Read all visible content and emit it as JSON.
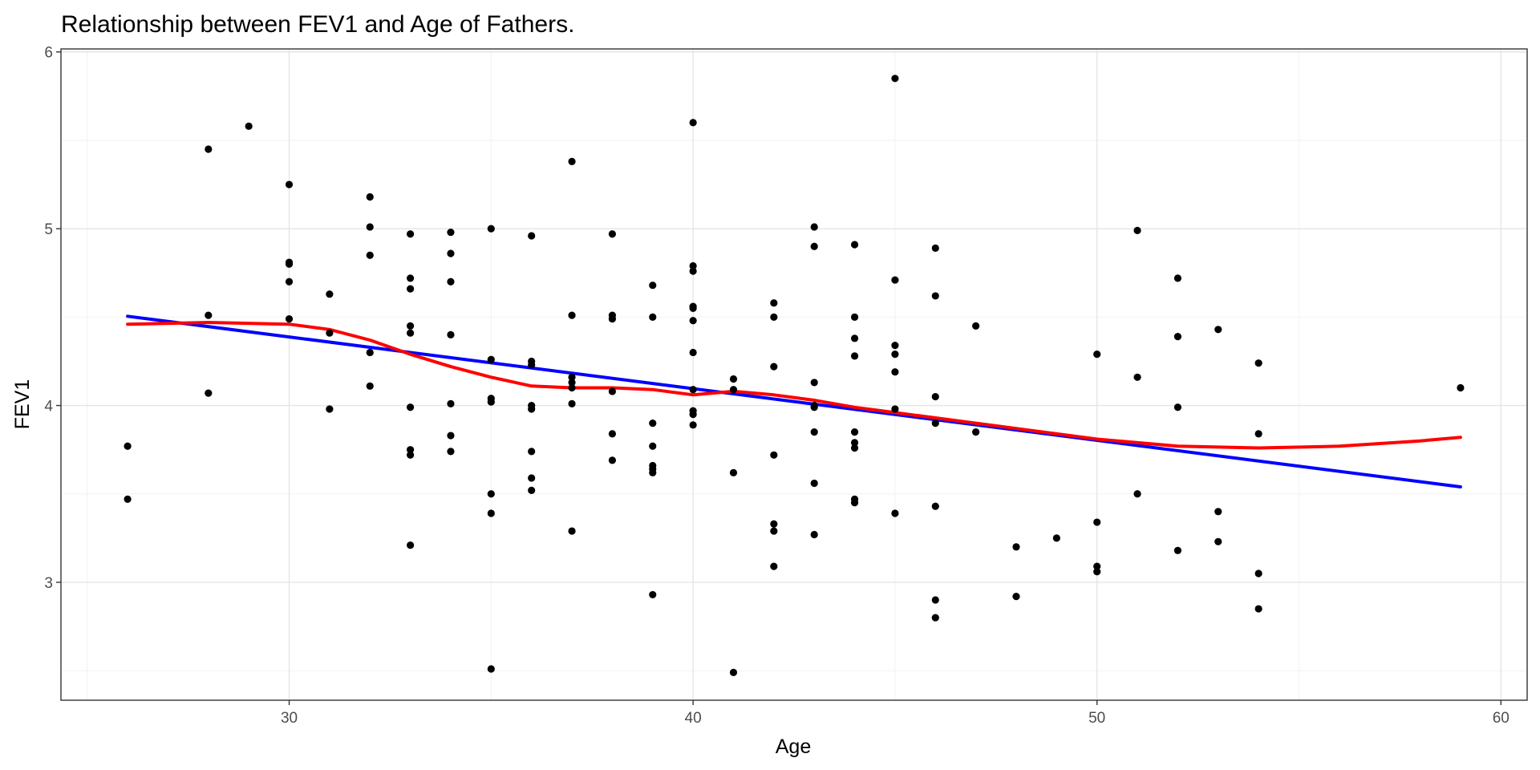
{
  "chart_data": {
    "type": "scatter",
    "title": "Relationship between FEV1 and Age of Fathers.",
    "xlabel": "Age",
    "ylabel": "FEV1",
    "xlim": [
      24.35,
      60.65
    ],
    "ylim": [
      2.333,
      6.017
    ],
    "xticks": [
      30,
      40,
      50,
      60
    ],
    "yticks": [
      3,
      4,
      5,
      6
    ],
    "xminor": [
      25,
      35,
      45,
      55
    ],
    "yminor": [
      2.5,
      3.5,
      4.5,
      5.5
    ],
    "grid": true,
    "points": [
      [
        26,
        3.77
      ],
      [
        26,
        3.47
      ],
      [
        28,
        5.45
      ],
      [
        28,
        4.51
      ],
      [
        28,
        4.07
      ],
      [
        29,
        5.58
      ],
      [
        30,
        5.25
      ],
      [
        30,
        4.81
      ],
      [
        30,
        4.8
      ],
      [
        30,
        4.7
      ],
      [
        30,
        4.49
      ],
      [
        31,
        4.63
      ],
      [
        31,
        4.41
      ],
      [
        31,
        3.98
      ],
      [
        32,
        5.18
      ],
      [
        32,
        5.01
      ],
      [
        32,
        4.85
      ],
      [
        32,
        4.3
      ],
      [
        32,
        4.11
      ],
      [
        33,
        4.97
      ],
      [
        33,
        4.72
      ],
      [
        33,
        4.66
      ],
      [
        33,
        4.45
      ],
      [
        33,
        4.41
      ],
      [
        33,
        3.99
      ],
      [
        33,
        3.75
      ],
      [
        33,
        3.72
      ],
      [
        33,
        3.21
      ],
      [
        34,
        4.98
      ],
      [
        34,
        4.86
      ],
      [
        34,
        4.7
      ],
      [
        34,
        4.4
      ],
      [
        34,
        4.01
      ],
      [
        34,
        3.83
      ],
      [
        34,
        3.74
      ],
      [
        35,
        5.0
      ],
      [
        35,
        4.26
      ],
      [
        35,
        4.04
      ],
      [
        35,
        4.02
      ],
      [
        35,
        3.5
      ],
      [
        35,
        3.39
      ],
      [
        35,
        2.51
      ],
      [
        36,
        4.96
      ],
      [
        36,
        4.25
      ],
      [
        36,
        4.23
      ],
      [
        36,
        4.0
      ],
      [
        36,
        3.98
      ],
      [
        36,
        3.74
      ],
      [
        36,
        3.59
      ],
      [
        36,
        3.52
      ],
      [
        37,
        5.38
      ],
      [
        37,
        4.51
      ],
      [
        37,
        4.16
      ],
      [
        37,
        4.13
      ],
      [
        37,
        4.1
      ],
      [
        37,
        4.01
      ],
      [
        37,
        3.29
      ],
      [
        38,
        4.97
      ],
      [
        38,
        4.51
      ],
      [
        38,
        4.49
      ],
      [
        38,
        4.08
      ],
      [
        38,
        3.84
      ],
      [
        38,
        3.69
      ],
      [
        39,
        4.68
      ],
      [
        39,
        4.5
      ],
      [
        39,
        3.9
      ],
      [
        39,
        3.77
      ],
      [
        39,
        3.66
      ],
      [
        39,
        3.64
      ],
      [
        39,
        3.62
      ],
      [
        39,
        2.93
      ],
      [
        40,
        5.6
      ],
      [
        40,
        4.79
      ],
      [
        40,
        4.76
      ],
      [
        40,
        4.56
      ],
      [
        40,
        4.55
      ],
      [
        40,
        4.48
      ],
      [
        40,
        4.3
      ],
      [
        40,
        4.09
      ],
      [
        40,
        3.97
      ],
      [
        40,
        3.95
      ],
      [
        40,
        3.89
      ],
      [
        41,
        4.15
      ],
      [
        41,
        4.09
      ],
      [
        41,
        3.62
      ],
      [
        41,
        2.49
      ],
      [
        42,
        4.58
      ],
      [
        42,
        4.5
      ],
      [
        42,
        4.22
      ],
      [
        42,
        3.72
      ],
      [
        42,
        3.33
      ],
      [
        42,
        3.29
      ],
      [
        42,
        3.09
      ],
      [
        43,
        5.01
      ],
      [
        43,
        4.9
      ],
      [
        43,
        4.13
      ],
      [
        43,
        4.0
      ],
      [
        43,
        3.99
      ],
      [
        43,
        3.85
      ],
      [
        43,
        3.56
      ],
      [
        43,
        3.27
      ],
      [
        44,
        4.91
      ],
      [
        44,
        4.5
      ],
      [
        44,
        4.38
      ],
      [
        44,
        4.28
      ],
      [
        44,
        3.85
      ],
      [
        44,
        3.79
      ],
      [
        44,
        3.76
      ],
      [
        44,
        3.47
      ],
      [
        44,
        3.45
      ],
      [
        45,
        5.85
      ],
      [
        45,
        4.71
      ],
      [
        45,
        4.34
      ],
      [
        45,
        4.29
      ],
      [
        45,
        4.19
      ],
      [
        45,
        3.98
      ],
      [
        45,
        3.39
      ],
      [
        46,
        4.89
      ],
      [
        46,
        4.62
      ],
      [
        46,
        4.05
      ],
      [
        46,
        3.9
      ],
      [
        46,
        3.43
      ],
      [
        46,
        2.9
      ],
      [
        46,
        2.8
      ],
      [
        47,
        4.45
      ],
      [
        47,
        3.85
      ],
      [
        48,
        3.2
      ],
      [
        48,
        2.92
      ],
      [
        49,
        3.25
      ],
      [
        50,
        4.29
      ],
      [
        50,
        3.34
      ],
      [
        50,
        3.09
      ],
      [
        50,
        3.06
      ],
      [
        51,
        4.99
      ],
      [
        51,
        4.16
      ],
      [
        51,
        3.5
      ],
      [
        52,
        4.72
      ],
      [
        52,
        4.39
      ],
      [
        52,
        3.99
      ],
      [
        52,
        3.18
      ],
      [
        53,
        4.43
      ],
      [
        53,
        3.4
      ],
      [
        53,
        3.23
      ],
      [
        54,
        4.24
      ],
      [
        54,
        3.84
      ],
      [
        54,
        3.05
      ],
      [
        54,
        2.85
      ],
      [
        59,
        4.1
      ]
    ],
    "series": [
      {
        "type": "linear-fit",
        "color": "#0000ff",
        "x": [
          26,
          59
        ],
        "y": [
          4.505,
          3.54
        ]
      },
      {
        "type": "loess-fit",
        "color": "#ff0000",
        "x": [
          26,
          28,
          30,
          31,
          32,
          33,
          34,
          35,
          36,
          37,
          38,
          39,
          40,
          41,
          42,
          43,
          44,
          45,
          46,
          47,
          48,
          50,
          52,
          54,
          56,
          58,
          59
        ],
        "y": [
          4.46,
          4.47,
          4.46,
          4.43,
          4.37,
          4.29,
          4.22,
          4.16,
          4.11,
          4.1,
          4.1,
          4.09,
          4.06,
          4.08,
          4.06,
          4.03,
          3.99,
          3.96,
          3.93,
          3.9,
          3.87,
          3.81,
          3.77,
          3.76,
          3.77,
          3.8,
          3.82
        ]
      }
    ],
    "point_color": "#000000"
  }
}
